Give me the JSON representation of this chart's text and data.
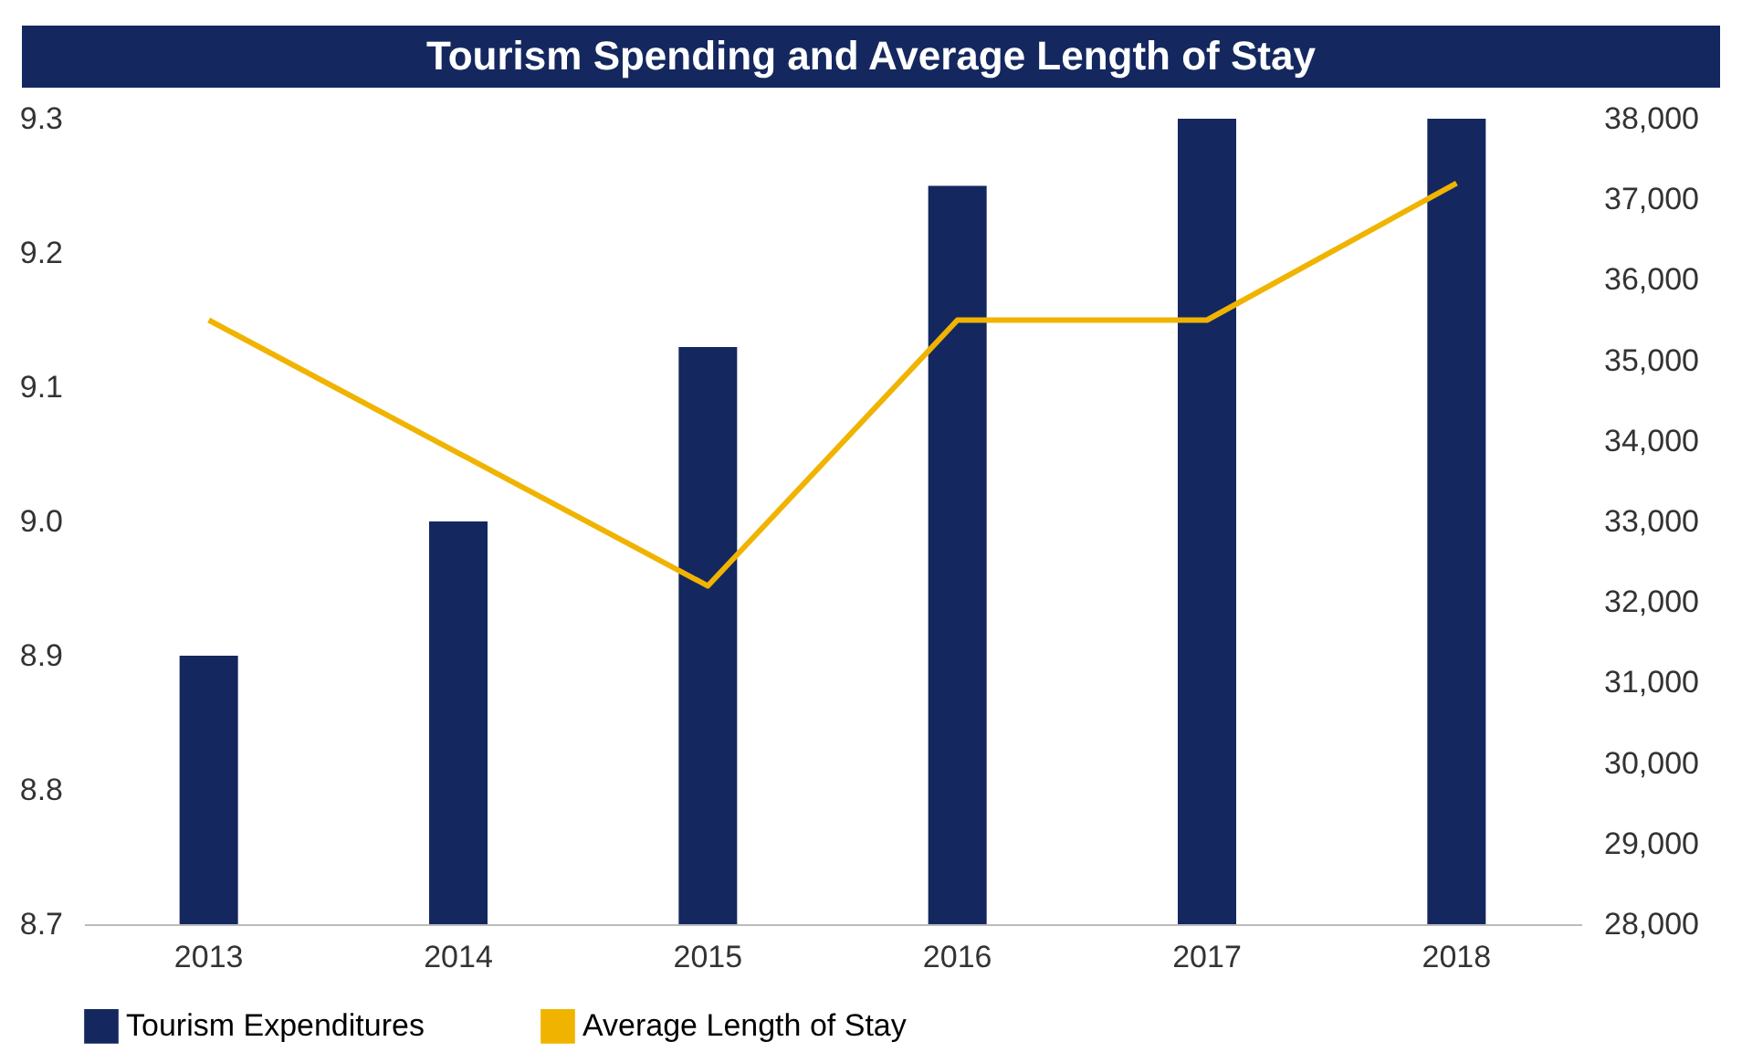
{
  "chart_data": {
    "type": "bar",
    "title": "Tourism Spending and Average Length of Stay",
    "categories": [
      "2013",
      "2014",
      "2015",
      "2016",
      "2017",
      "2018"
    ],
    "series": [
      {
        "name": "Tourism Expenditures",
        "color": "#14285f",
        "values": [
          8.9,
          9.0,
          9.13,
          9.25,
          9.3,
          9.3
        ]
      },
      {
        "name": "Average Length of Stay",
        "type": "line",
        "axis": "y2",
        "color": "#f0b400",
        "values": [
          35500,
          33850,
          32200,
          35500,
          35500,
          37200
        ]
      }
    ],
    "ylim": [
      8.7,
      9.3
    ],
    "yticks": [
      8.7,
      8.8,
      8.9,
      {
        "value": 9,
        "label": "9.0"
      },
      9.1,
      9.2,
      9.3
    ],
    "y2lim": [
      28000,
      38000
    ],
    "y2ticks": [
      {
        "value": 28000,
        "label": "28,000"
      },
      {
        "value": 29000,
        "label": "29,000"
      },
      {
        "value": 30000,
        "label": "30,000"
      },
      {
        "value": 31000,
        "label": "31,000"
      },
      {
        "value": 32000,
        "label": "32,000"
      },
      {
        "value": 33000,
        "label": "33,000"
      },
      {
        "value": 34000,
        "label": "34,000"
      },
      {
        "value": 35000,
        "label": "35,000"
      },
      {
        "value": 36000,
        "label": "36,000"
      },
      {
        "value": 37000,
        "label": "37,000"
      },
      {
        "value": 38000,
        "label": "38,000"
      }
    ],
    "grid": false,
    "legend": "bottom"
  }
}
